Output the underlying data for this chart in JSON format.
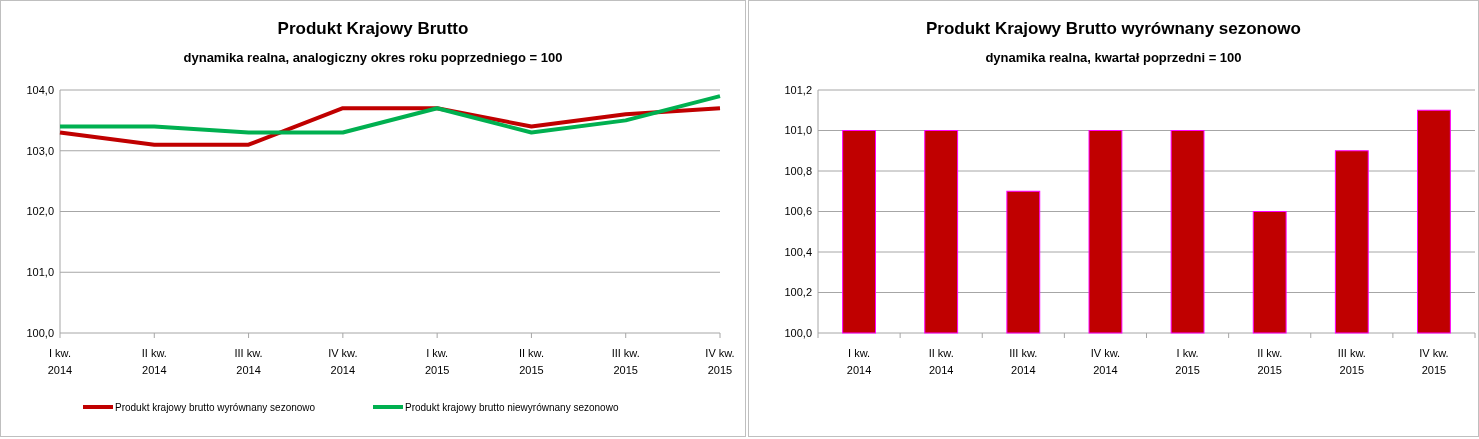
{
  "chart_data": [
    {
      "type": "line",
      "title": "Produkt Krajowy Brutto",
      "subtitle": "dynamika realna, analogiczny okres roku poprzedniego = 100",
      "categories": [
        "I kw. 2014",
        "II kw. 2014",
        "III kw. 2014",
        "IV kw. 2014",
        "I kw. 2015",
        "II kw. 2015",
        "III kw. 2015",
        "IV kw. 2015"
      ],
      "series": [
        {
          "name": "Produkt krajowy brutto wyrównany sezonowo",
          "color": "#c00000",
          "values": [
            103.3,
            103.1,
            103.1,
            103.7,
            103.7,
            103.4,
            103.6,
            103.7
          ]
        },
        {
          "name": "Produkt krajowy brutto niewyrównany sezonowo",
          "color": "#00b050",
          "values": [
            103.4,
            103.4,
            103.3,
            103.3,
            103.7,
            103.3,
            103.5,
            103.9
          ]
        }
      ],
      "ylim": [
        100,
        104
      ],
      "yticks": [
        {
          "value": 100,
          "label": "100,0"
        },
        {
          "value": 101,
          "label": "101,0"
        },
        {
          "value": 102,
          "label": "102,0"
        },
        {
          "value": 103,
          "label": "103,0"
        },
        {
          "value": 104,
          "label": "104,0"
        }
      ],
      "grid": "y",
      "legend": "bottom",
      "marker": "none"
    },
    {
      "type": "bar",
      "title": "Produkt Krajowy Brutto wyrównany sezonowo",
      "subtitle": "dynamika realna, kwartał poprzedni = 100",
      "categories": [
        "I kw. 2014",
        "II kw. 2014",
        "III kw. 2014",
        "IV kw. 2014",
        "I kw. 2015",
        "II kw. 2015",
        "III kw. 2015",
        "IV kw. 2015"
      ],
      "values": [
        101.0,
        101.0,
        100.7,
        101.0,
        101.0,
        100.6,
        100.9,
        101.1
      ],
      "color": "#c00000",
      "ylim": [
        100,
        101.2
      ],
      "yticks": [
        {
          "value": 100,
          "label": "100,0"
        },
        {
          "value": 100.2,
          "label": "100,2"
        },
        {
          "value": 100.4,
          "label": "100,4"
        },
        {
          "value": 100.6,
          "label": "100,6"
        },
        {
          "value": 100.8,
          "label": "100,8"
        },
        {
          "value": 101,
          "label": "101,0"
        },
        {
          "value": 101.2,
          "label": "101,2"
        }
      ],
      "grid": "y",
      "legend": false
    }
  ]
}
